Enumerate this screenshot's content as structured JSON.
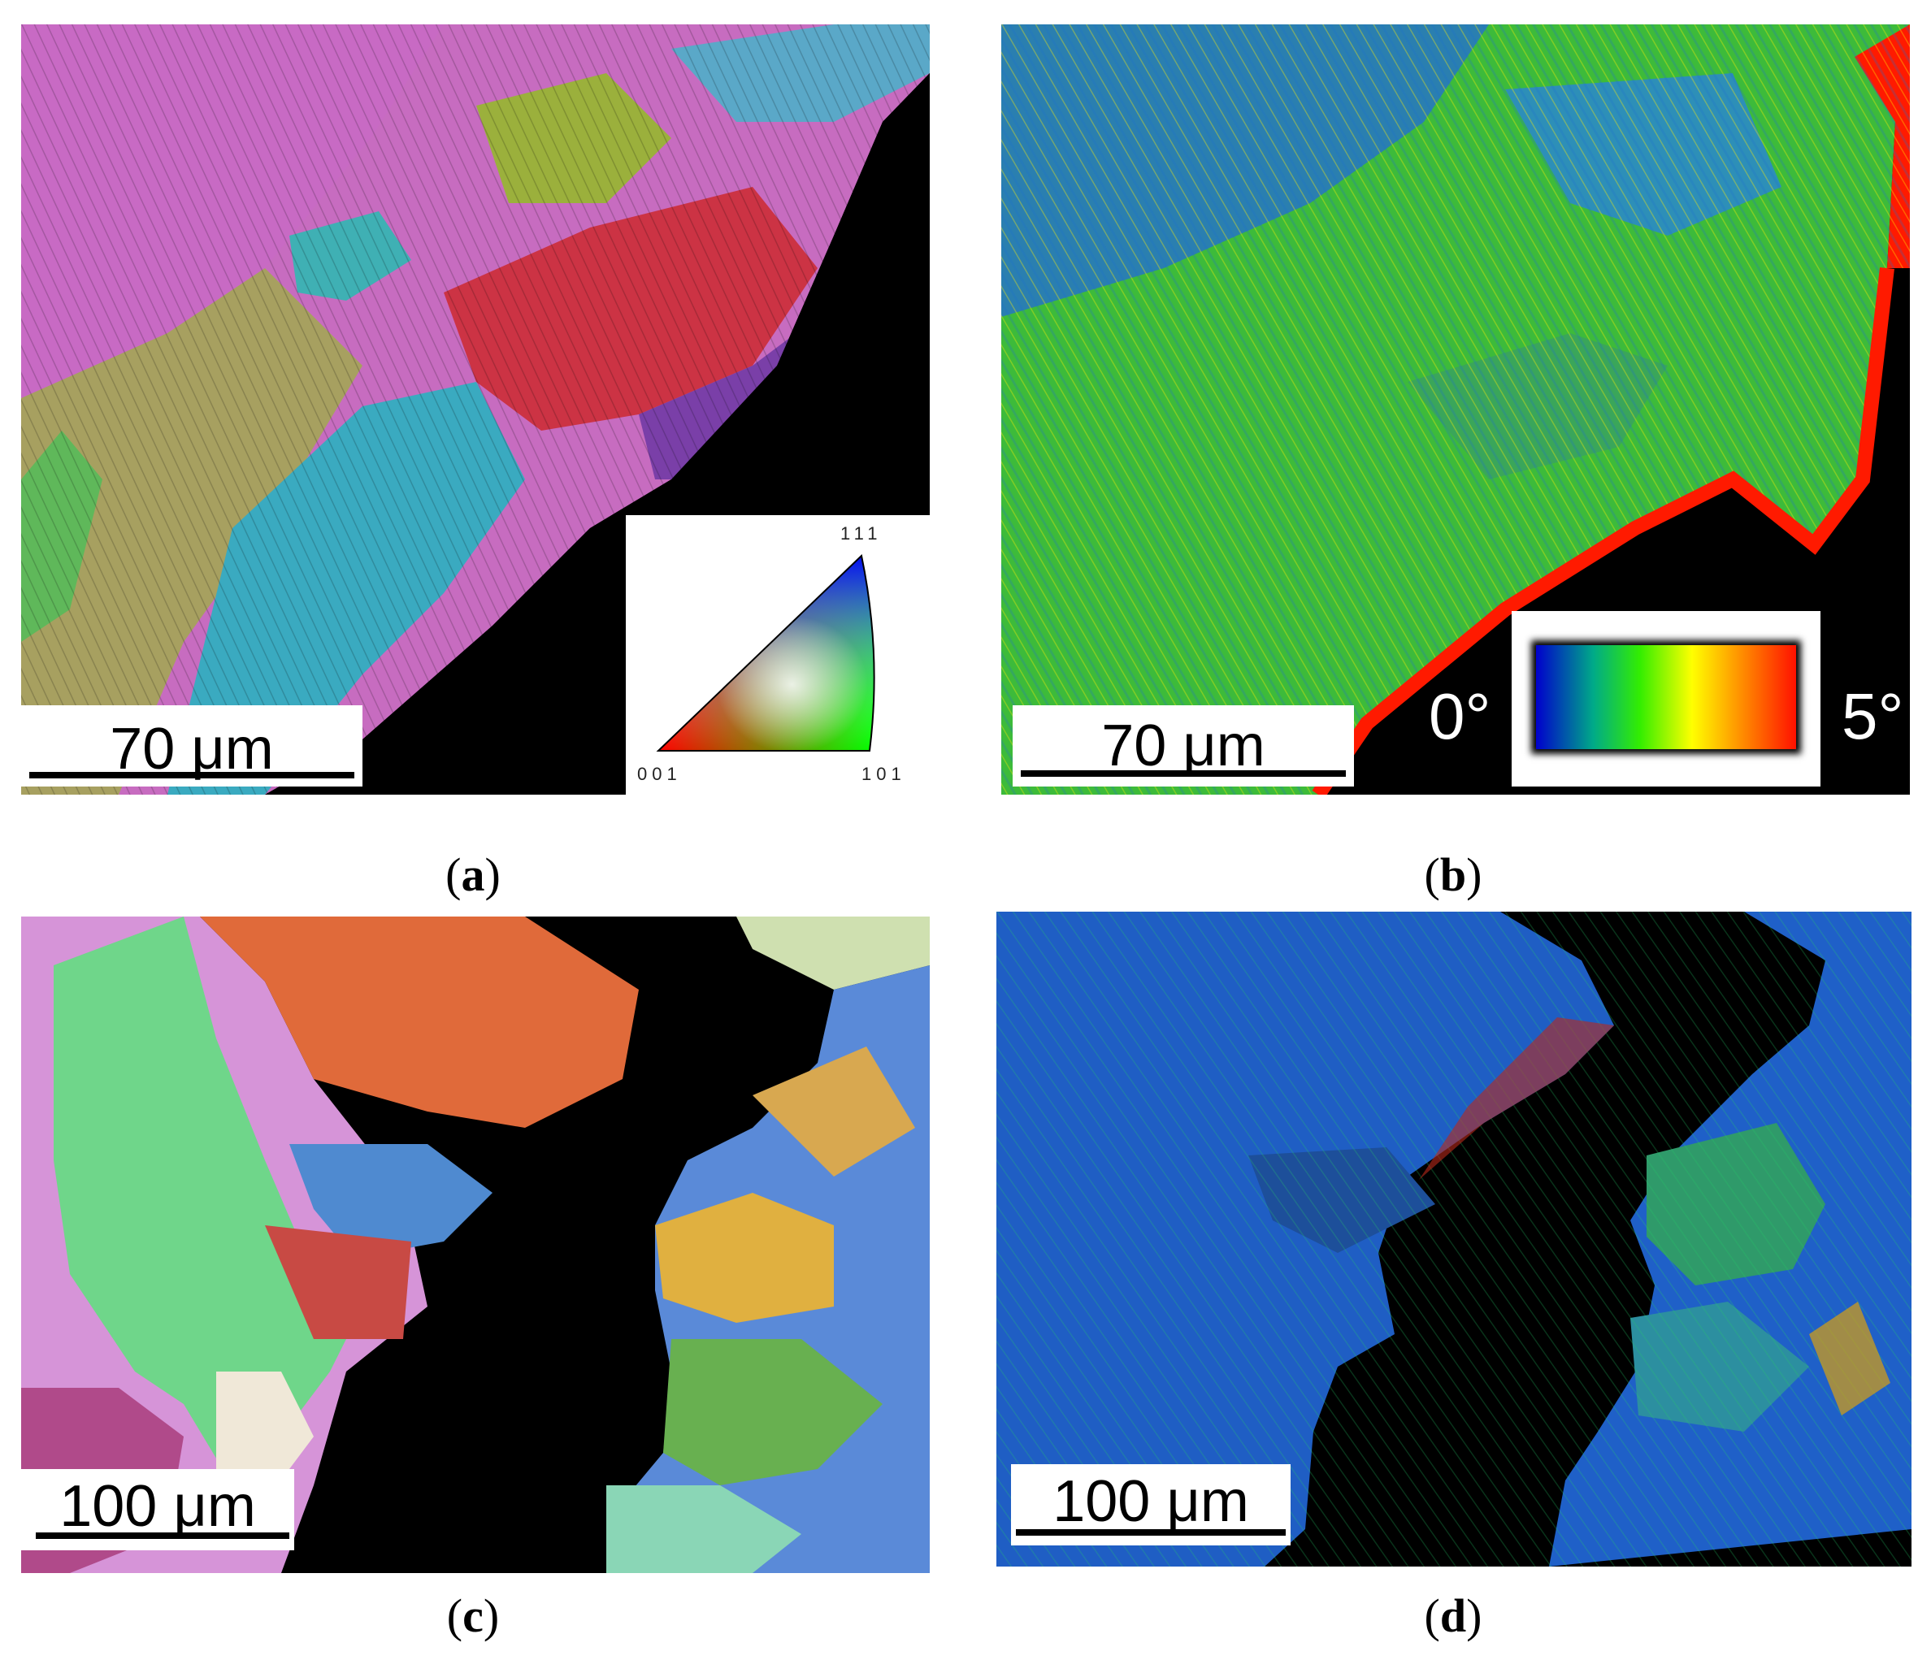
{
  "panels": [
    {
      "id": "a",
      "caption": "a",
      "scale_bar": "70 μm",
      "map_type": "inverse-pole-figure-orientation-map"
    },
    {
      "id": "b",
      "caption": "b",
      "scale_bar": "70 μm",
      "map_type": "kernel-average-misorientation-map"
    },
    {
      "id": "c",
      "caption": "c",
      "scale_bar": "100 μm",
      "map_type": "inverse-pole-figure-orientation-map"
    },
    {
      "id": "d",
      "caption": "d",
      "scale_bar": "100 μm",
      "map_type": "kernel-average-misorientation-map"
    }
  ],
  "ipf_legend": {
    "top": "111",
    "bottom_left": "001",
    "bottom_right": "101"
  },
  "kam_legend": {
    "min": "0°",
    "max": "5°",
    "colors": [
      "#0000cc",
      "#00cc66",
      "#33ee00",
      "#ffff00",
      "#ff8800",
      "#ff1100"
    ]
  }
}
